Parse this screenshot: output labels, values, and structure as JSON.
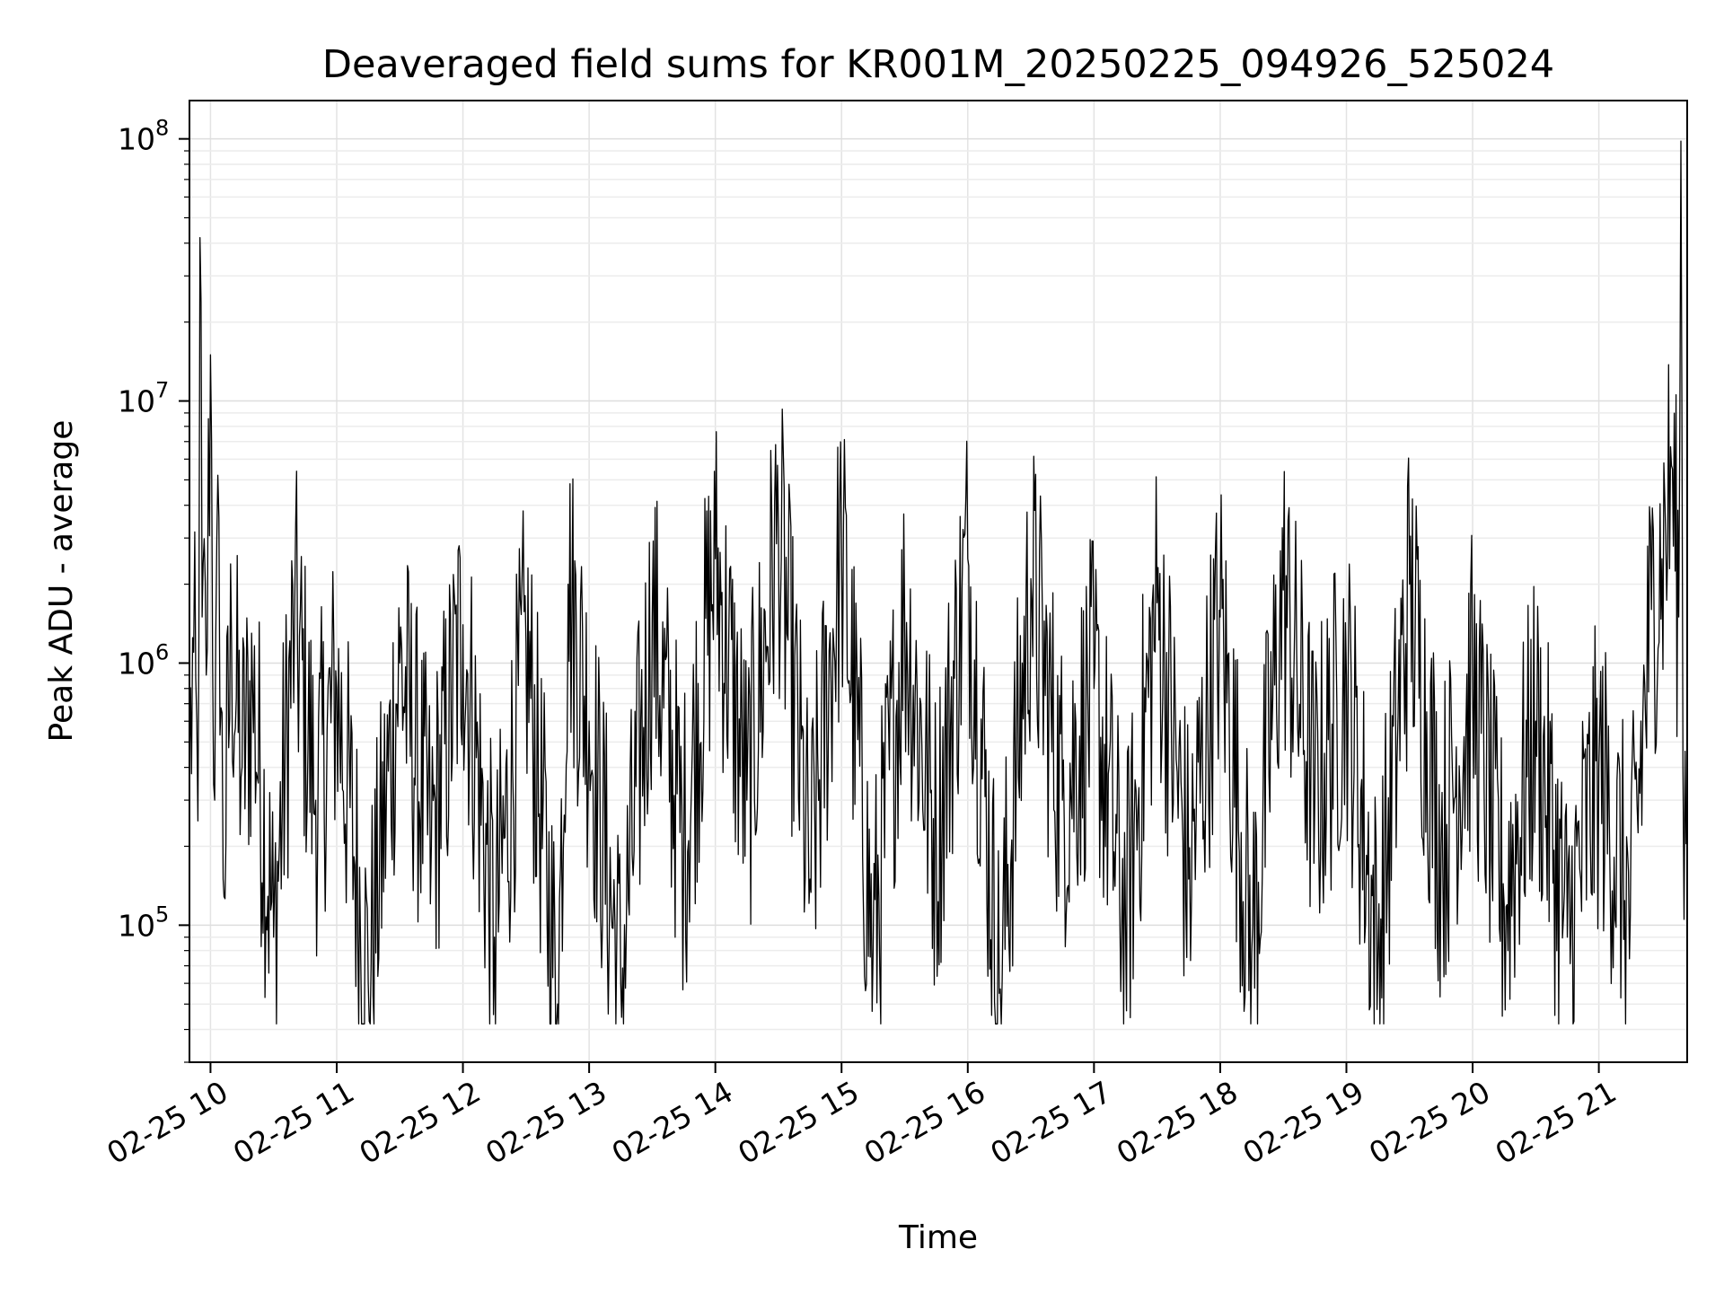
{
  "chart_data": {
    "type": "line",
    "title": "Deaveraged field sums for KR001M_20250225_094926_525024",
    "xlabel": "Time",
    "ylabel": "Peak ADU - average",
    "y_scale": "log",
    "ylim": [
      30000,
      140000000
    ],
    "xlim": [
      "2025-02-25 09:50",
      "2025-02-25 21:42"
    ],
    "grid": true,
    "legend": "none",
    "line_color": "#000000",
    "x_ticks": [
      {
        "value": "2025-02-25 10:00",
        "label": "02-25 10"
      },
      {
        "value": "2025-02-25 11:00",
        "label": "02-25 11"
      },
      {
        "value": "2025-02-25 12:00",
        "label": "02-25 12"
      },
      {
        "value": "2025-02-25 13:00",
        "label": "02-25 13"
      },
      {
        "value": "2025-02-25 14:00",
        "label": "02-25 14"
      },
      {
        "value": "2025-02-25 15:00",
        "label": "02-25 15"
      },
      {
        "value": "2025-02-25 16:00",
        "label": "02-25 16"
      },
      {
        "value": "2025-02-25 17:00",
        "label": "02-25 17"
      },
      {
        "value": "2025-02-25 18:00",
        "label": "02-25 18"
      },
      {
        "value": "2025-02-25 19:00",
        "label": "02-25 19"
      },
      {
        "value": "2025-02-25 20:00",
        "label": "02-25 20"
      },
      {
        "value": "2025-02-25 21:00",
        "label": "02-25 21"
      }
    ],
    "y_ticks": [
      {
        "value": 100000,
        "base": "10",
        "exp": "5"
      },
      {
        "value": 1000000,
        "base": "10",
        "exp": "6"
      },
      {
        "value": 10000000,
        "base": "10",
        "exp": "7"
      },
      {
        "value": 100000000,
        "base": "10",
        "exp": "8"
      }
    ],
    "series": [
      {
        "name": "",
        "x": [
          "2025-02-25 09:50",
          "2025-02-25 09:52",
          "2025-02-25 09:54",
          "2025-02-25 09:55",
          "2025-02-25 09:56",
          "2025-02-25 09:58",
          "2025-02-25 10:00",
          "2025-02-25 10:02",
          "2025-02-25 10:04",
          "2025-02-25 10:06",
          "2025-02-25 10:10",
          "2025-02-25 10:15",
          "2025-02-25 10:20",
          "2025-02-25 10:30",
          "2025-02-25 10:40",
          "2025-02-25 10:50",
          "2025-02-25 11:00",
          "2025-02-25 11:15",
          "2025-02-25 11:30",
          "2025-02-25 11:45",
          "2025-02-25 12:00",
          "2025-02-25 12:15",
          "2025-02-25 12:30",
          "2025-02-25 12:45",
          "2025-02-25 12:50",
          "2025-02-25 13:00",
          "2025-02-25 13:15",
          "2025-02-25 13:30",
          "2025-02-25 13:45",
          "2025-02-25 14:00",
          "2025-02-25 14:15",
          "2025-02-25 14:30",
          "2025-02-25 14:45",
          "2025-02-25 15:00",
          "2025-02-25 15:15",
          "2025-02-25 15:30",
          "2025-02-25 15:45",
          "2025-02-25 16:00",
          "2025-02-25 16:15",
          "2025-02-25 16:30",
          "2025-02-25 16:45",
          "2025-02-25 17:00",
          "2025-02-25 17:15",
          "2025-02-25 17:30",
          "2025-02-25 17:45",
          "2025-02-25 18:00",
          "2025-02-25 18:15",
          "2025-02-25 18:30",
          "2025-02-25 18:45",
          "2025-02-25 19:00",
          "2025-02-25 19:15",
          "2025-02-25 19:30",
          "2025-02-25 19:45",
          "2025-02-25 20:00",
          "2025-02-25 20:15",
          "2025-02-25 20:30",
          "2025-02-25 20:45",
          "2025-02-25 21:00",
          "2025-02-25 21:15",
          "2025-02-25 21:25",
          "2025-02-25 21:30",
          "2025-02-25 21:35",
          "2025-02-25 21:38",
          "2025-02-25 21:39",
          "2025-02-25 21:40",
          "2025-02-25 21:42"
        ],
        "y": [
          400000,
          1100000,
          250000,
          42000000,
          1500000,
          900000,
          15000000,
          300000,
          3600000,
          150000,
          1200000,
          400000,
          800000,
          90000,
          1500000,
          300000,
          800000,
          60000,
          1000000,
          200000,
          1400000,
          90000,
          1200000,
          50000,
          2000000,
          600000,
          60000,
          1500000,
          200000,
          2500000,
          300000,
          3300000,
          150000,
          2800000,
          80000,
          1500000,
          200000,
          2500000,
          55000,
          2100000,
          300000,
          800000,
          100000,
          1700000,
          150000,
          1500000,
          80000,
          1900000,
          300000,
          900000,
          75000,
          2000000,
          200000,
          800000,
          120000,
          600000,
          90000,
          400000,
          110000,
          1600000,
          2500000,
          5500000,
          1500000,
          98000000,
          400000,
          250000
        ]
      }
    ]
  }
}
